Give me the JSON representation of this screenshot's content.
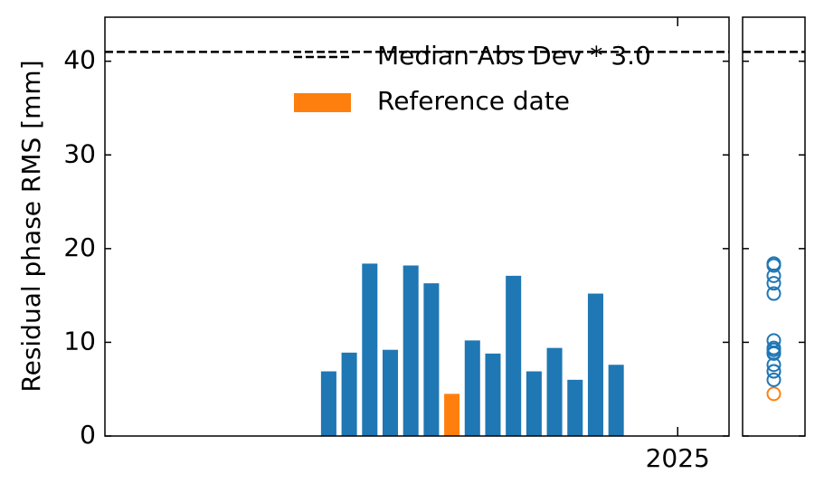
{
  "chart_data": {
    "type": "bar",
    "ylabel": "Residual phase RMS [mm]",
    "categories": [
      null,
      null,
      null,
      null,
      null,
      null,
      null,
      null,
      null,
      null,
      null,
      null,
      null,
      null,
      null
    ],
    "values": [
      6.9,
      8.9,
      18.4,
      9.2,
      18.2,
      16.3,
      4.5,
      10.2,
      8.8,
      17.1,
      6.9,
      9.4,
      6.0,
      15.2,
      7.6
    ],
    "colors": [
      "#1f77b4",
      "#1f77b4",
      "#1f77b4",
      "#1f77b4",
      "#1f77b4",
      "#1f77b4",
      "#ff7f0e",
      "#1f77b4",
      "#1f77b4",
      "#1f77b4",
      "#1f77b4",
      "#1f77b4",
      "#1f77b4",
      "#1f77b4",
      "#1f77b4"
    ],
    "xlim": [
      -10.9,
      19.5
    ],
    "xticks": [
      {
        "value": 17,
        "label": "2025"
      }
    ],
    "ylim": [
      0,
      44.7
    ],
    "yticks": [
      0,
      10,
      20,
      30,
      40
    ],
    "threshold": 41,
    "legend": [
      {
        "label": "Median Abs Dev * 3.0",
        "color": "#000000"
      },
      {
        "label": "Reference date",
        "color": "#ff7f0e"
      }
    ]
  }
}
